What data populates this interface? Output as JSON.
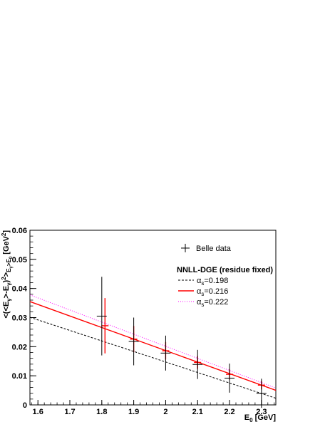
{
  "chart_data": {
    "type": "line",
    "xlabel": "E_0 [GeV]",
    "ylabel": "<(<E_γ>-E_γ)^2>_{E_γ>E_0} [GeV^2]",
    "xlim": [
      1.575,
      2.345
    ],
    "ylim": [
      0,
      0.06
    ],
    "x_ticks": [
      "1.6",
      "1.7",
      "1.8",
      "1.9",
      "2",
      "2.1",
      "2.2",
      "2.3"
    ],
    "y_ticks": [
      "0",
      "0.01",
      "0.02",
      "0.03",
      "0.04",
      "0.05",
      "0.06"
    ],
    "grid": false,
    "legend_placement": "top-right",
    "legend_header": "NNLL-DGE (residue fixed)",
    "series": [
      {
        "name": "Belle data",
        "kind": "points",
        "color": "#000000",
        "x": [
          1.8,
          1.9,
          2.0,
          2.1,
          2.2,
          2.3
        ],
        "y": [
          0.0305,
          0.0218,
          0.0178,
          0.0139,
          0.0092,
          0.004
        ],
        "err_low": [
          0.0135,
          0.0082,
          0.006,
          0.005,
          0.005,
          0.005
        ],
        "err_high": [
          0.0135,
          0.0082,
          0.006,
          0.005,
          0.005,
          0.005
        ]
      },
      {
        "name": "α_s=0.198",
        "kind": "line",
        "style": "dashed",
        "color": "#000000",
        "x": [
          1.575,
          2.345
        ],
        "y": [
          0.0301,
          0.0023
        ]
      },
      {
        "name": "α_s=0.216",
        "kind": "line",
        "style": "solid",
        "color": "#ff0000",
        "x": [
          1.575,
          2.345
        ],
        "y": [
          0.0355,
          0.005
        ],
        "points": {
          "x": [
            1.81,
            1.9,
            2.0,
            2.1,
            2.2,
            2.3
          ],
          "y": [
            0.0272,
            0.0226,
            0.0186,
            0.0146,
            0.0105,
            0.0068
          ],
          "err_low": [
            0.0095,
            0.0045,
            0.003,
            0.0022,
            0.0018,
            0.0015
          ],
          "err_high": [
            0.0095,
            0.0045,
            0.003,
            0.0022,
            0.0018,
            0.0015
          ]
        }
      },
      {
        "name": "α_s=0.222",
        "kind": "line",
        "style": "dotted",
        "color": "#ff00ff",
        "x": [
          1.575,
          2.345
        ],
        "y": [
          0.0378,
          0.0058
        ]
      }
    ]
  }
}
